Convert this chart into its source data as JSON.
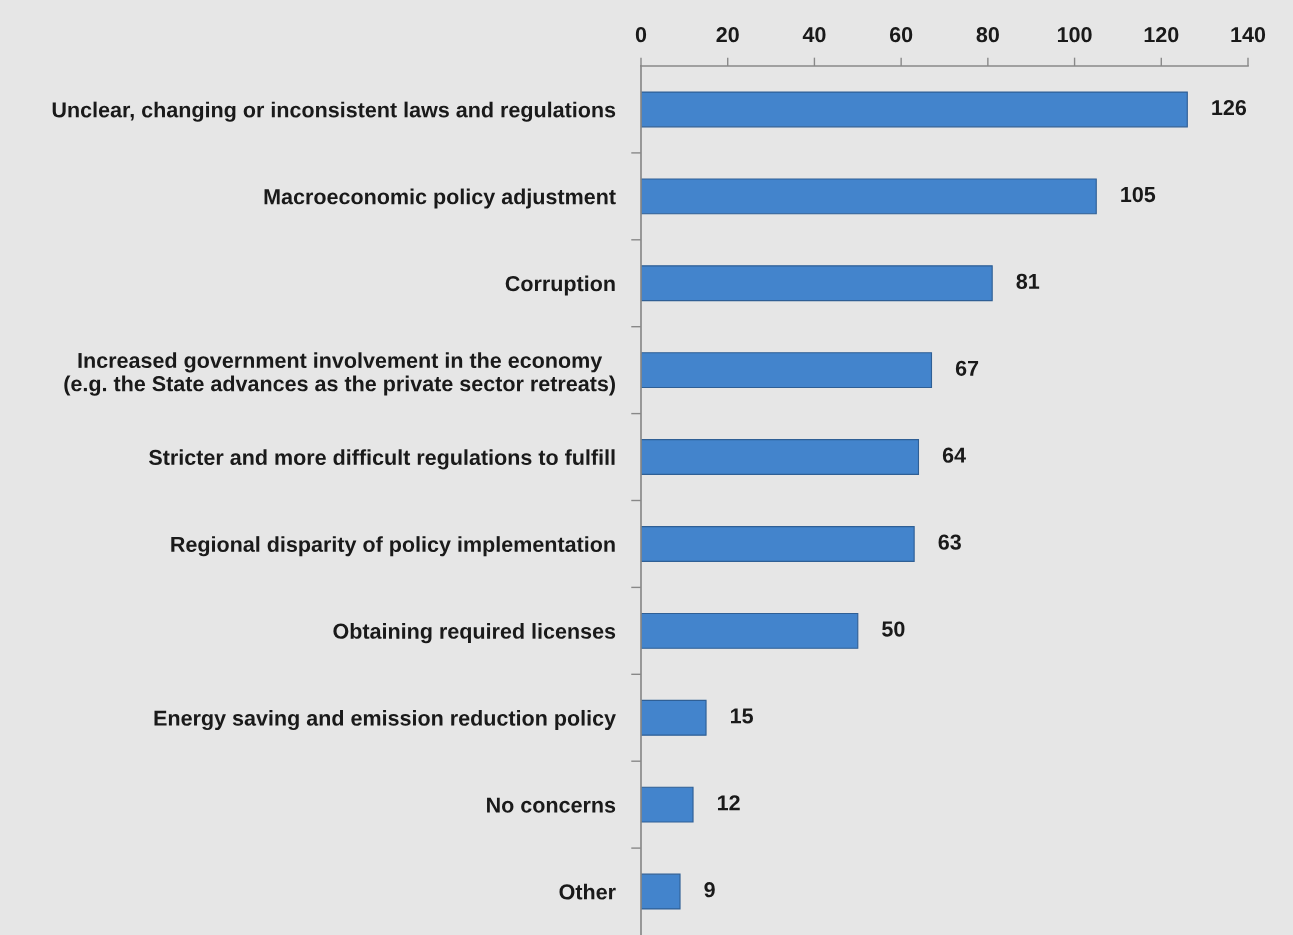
{
  "chart_data": {
    "type": "bar",
    "orientation": "horizontal",
    "categories": [
      "Unclear, changing or inconsistent laws and regulations",
      "Macroeconomic policy adjustment",
      "Corruption",
      "Increased government involvement in the economy\n(e.g. the State advances as the private sector retreats)",
      "Stricter and more difficult regulations to fulfill",
      "Regional disparity of policy implementation",
      "Obtaining required licenses",
      "Energy saving and emission reduction policy",
      "No concerns",
      "Other"
    ],
    "values": [
      126,
      105,
      81,
      67,
      64,
      63,
      50,
      15,
      12,
      9
    ],
    "color": "#4384cc",
    "xlim": [
      0,
      140
    ],
    "xticks": [
      0,
      20,
      40,
      60,
      80,
      100,
      120,
      140
    ],
    "data_labels": true,
    "grid": false,
    "legend": false
  }
}
